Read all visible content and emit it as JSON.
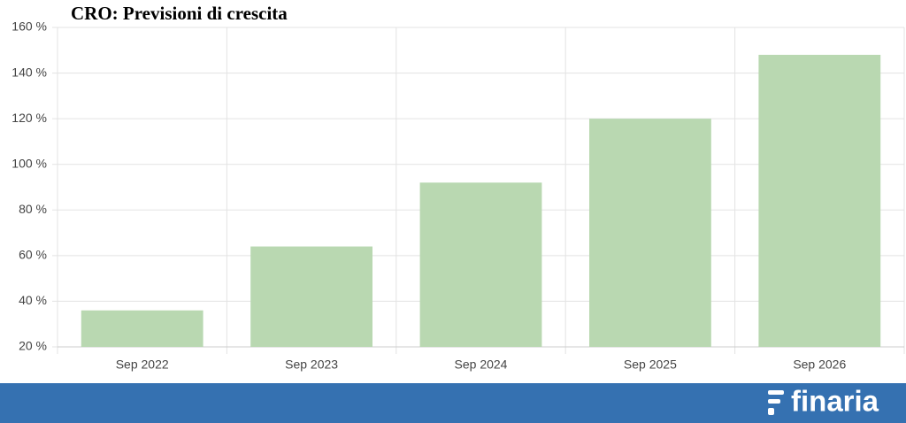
{
  "chart_data": {
    "type": "bar",
    "title": "CRO: Previsioni di crescita",
    "categories": [
      "Sep 2022",
      "Sep 2023",
      "Sep 2024",
      "Sep 2025",
      "Sep 2026"
    ],
    "values": [
      36,
      64,
      92,
      120,
      148
    ],
    "color": "#b9d8b1",
    "ylim": [
      20,
      160
    ],
    "yticks": [
      {
        "value": 20,
        "label": "20 %"
      },
      {
        "value": 40,
        "label": "40 %"
      },
      {
        "value": 60,
        "label": "60 %"
      },
      {
        "value": 80,
        "label": "80 %"
      },
      {
        "value": 100,
        "label": "100 %"
      },
      {
        "value": 120,
        "label": "120 %"
      },
      {
        "value": 140,
        "label": "140 %"
      },
      {
        "value": 160,
        "label": "160 %"
      }
    ],
    "grid": true
  },
  "brand": "finaria"
}
